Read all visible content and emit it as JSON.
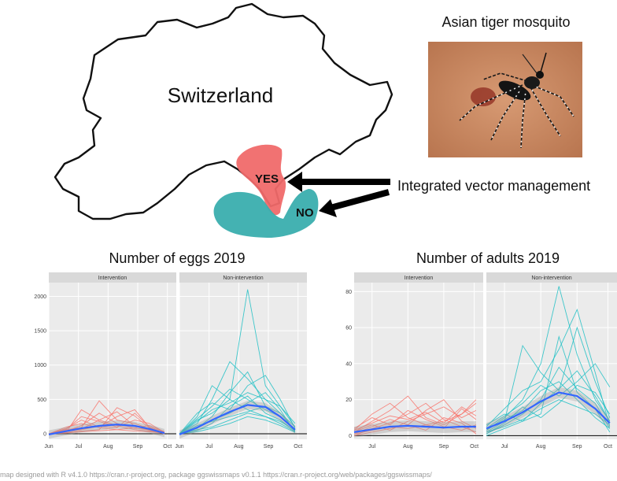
{
  "map": {
    "country_label": "Switzerland",
    "yes_label": "YES",
    "no_label": "NO",
    "yes_color": "#f06a6a",
    "no_color": "#3aaeae",
    "arrow_label": "Integrated vector management"
  },
  "photo": {
    "title": "Asian tiger mosquito"
  },
  "footer": "map designed with R v4.1.0 https://cran.r-project.org, package ggswissmaps v0.1.1 https://cran.r-project.org/web/packages/ggswissmaps/",
  "chart_data": [
    {
      "type": "line",
      "title": "Number of eggs 2019",
      "x_ticks": [
        "Jun",
        "Jul",
        "Aug",
        "Sep",
        "Oct"
      ],
      "y_ticks": [
        0,
        500,
        1000,
        1500,
        2000
      ],
      "ylim": [
        -80,
        2200
      ],
      "xlim": [
        0,
        4.3
      ],
      "panels": [
        {
          "name": "Intervention",
          "color": "#f8766d",
          "x": [
            0,
            0.6,
            1.1,
            1.7,
            2.3,
            2.9,
            3.4,
            3.9
          ],
          "series": [
            [
              0,
              40,
              120,
              300,
              150,
              80,
              60,
              0
            ],
            [
              0,
              80,
              200,
              100,
              250,
              350,
              90,
              10
            ],
            [
              0,
              30,
              350,
              200,
              120,
              60,
              40,
              5
            ],
            [
              0,
              60,
              90,
              480,
              200,
              150,
              70,
              0
            ],
            [
              0,
              20,
              60,
              110,
              90,
              300,
              100,
              20
            ],
            [
              0,
              10,
              40,
              60,
              380,
              260,
              80,
              0
            ],
            [
              0,
              100,
              150,
              90,
              60,
              40,
              30,
              10
            ],
            [
              0,
              50,
              70,
              200,
              320,
              110,
              50,
              0
            ],
            [
              0,
              15,
              30,
              45,
              60,
              90,
              120,
              30
            ],
            [
              0,
              70,
              250,
              180,
              100,
              200,
              150,
              20
            ]
          ],
          "trend": [
            -10,
            40,
            80,
            115,
            135,
            115,
            70,
            10
          ]
        },
        {
          "name": "Non-intervention",
          "color": "#1fbfc4",
          "x": [
            0,
            0.6,
            1.1,
            1.7,
            2.3,
            2.9,
            3.4,
            3.9
          ],
          "series": [
            [
              0,
              200,
              300,
              500,
              2100,
              700,
              400,
              100
            ],
            [
              0,
              150,
              500,
              1050,
              800,
              500,
              300,
              50
            ],
            [
              0,
              80,
              250,
              600,
              900,
              400,
              250,
              60
            ],
            [
              0,
              300,
              450,
              350,
              700,
              850,
              500,
              80
            ],
            [
              0,
              100,
              200,
              300,
              450,
              600,
              350,
              20
            ],
            [
              0,
              50,
              150,
              400,
              550,
              300,
              200,
              40
            ],
            [
              0,
              250,
              700,
              500,
              350,
              250,
              150,
              30
            ],
            [
              0,
              120,
              180,
              250,
              320,
              400,
              300,
              100
            ],
            [
              0,
              60,
              100,
              200,
              300,
              250,
              180,
              50
            ],
            [
              0,
              180,
              350,
              450,
              600,
              500,
              400,
              150
            ],
            [
              0,
              30,
              80,
              150,
              250,
              200,
              120,
              20
            ],
            [
              0,
              220,
              400,
              650,
              500,
              350,
              250,
              60
            ]
          ],
          "trend": [
            -10,
            90,
            200,
            320,
            420,
            390,
            250,
            60
          ]
        }
      ]
    },
    {
      "type": "line",
      "title": "Number of adults 2019",
      "x_ticks": [
        "Jul",
        "Aug",
        "Sep",
        "Oct"
      ],
      "y_ticks": [
        0,
        20,
        40,
        60,
        80
      ],
      "ylim": [
        -2,
        85
      ],
      "xlim": [
        0,
        3.6
      ],
      "panels": [
        {
          "name": "Intervention",
          "color": "#f8766d",
          "x": [
            0,
            0.5,
            1.0,
            1.5,
            2.0,
            2.5,
            3.0,
            3.4
          ],
          "series": [
            [
              2,
              8,
              14,
              22,
              10,
              6,
              12,
              18
            ],
            [
              1,
              5,
              9,
              6,
              14,
              20,
              8,
              4
            ],
            [
              3,
              12,
              18,
              10,
              6,
              4,
              15,
              9
            ],
            [
              0,
              4,
              7,
              12,
              18,
              9,
              5,
              2
            ],
            [
              2,
              6,
              3,
              8,
              12,
              16,
              10,
              14
            ],
            [
              1,
              3,
              5,
              4,
              6,
              8,
              12,
              20
            ],
            [
              4,
              10,
              6,
              14,
              9,
              5,
              3,
              6
            ],
            [
              0,
              2,
              4,
              6,
              3,
              10,
              7,
              1
            ],
            [
              3,
              7,
              11,
              9,
              13,
              7,
              16,
              11
            ]
          ],
          "trend": [
            2,
            3.5,
            5,
            5.5,
            5,
            4.5,
            5,
            5
          ]
        },
        {
          "name": "Non-intervention",
          "color": "#1fbfc4",
          "x": [
            0,
            0.5,
            1.0,
            1.5,
            2.0,
            2.5,
            3.0,
            3.4
          ],
          "series": [
            [
              3,
              10,
              20,
              40,
              83,
              45,
              20,
              8
            ],
            [
              2,
              8,
              50,
              35,
              25,
              60,
              30,
              10
            ],
            [
              5,
              15,
              25,
              30,
              48,
              70,
              35,
              5
            ],
            [
              1,
              6,
              12,
              20,
              38,
              26,
              18,
              4
            ],
            [
              4,
              11,
              18,
              28,
              22,
              30,
              40,
              27
            ],
            [
              2,
              5,
              9,
              15,
              20,
              16,
              12,
              6
            ],
            [
              0,
              4,
              8,
              12,
              55,
              24,
              15,
              2
            ],
            [
              3,
              9,
              14,
              25,
              30,
              20,
              10,
              4
            ],
            [
              1,
              7,
              16,
              10,
              18,
              28,
              24,
              12
            ],
            [
              6,
              12,
              8,
              18,
              26,
              36,
              22,
              8
            ]
          ],
          "trend": [
            4,
            8,
            13,
            19,
            24,
            22,
            15,
            7
          ]
        }
      ]
    }
  ]
}
